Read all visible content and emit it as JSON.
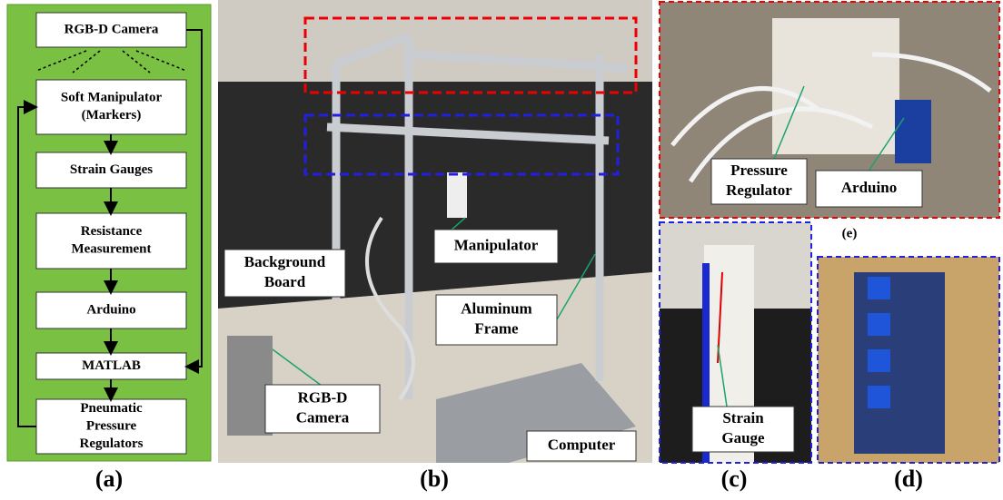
{
  "flowchart": {
    "nodes": [
      {
        "lines": [
          "RGB-D Camera"
        ]
      },
      {
        "lines": [
          "Soft Manipulator",
          "(Markers)"
        ]
      },
      {
        "lines": [
          "Strain Gauges"
        ]
      },
      {
        "lines": [
          "Resistance",
          "Measurement"
        ]
      },
      {
        "lines": [
          "Arduino"
        ]
      },
      {
        "lines": [
          "MATLAB"
        ]
      },
      {
        "lines": [
          "Pneumatic",
          "Pressure",
          "Regulators"
        ]
      }
    ]
  },
  "photo_labels": [
    {
      "lines": [
        "Manipulator"
      ]
    },
    {
      "lines": [
        "Background",
        "Board"
      ]
    },
    {
      "lines": [
        "Aluminum",
        "Frame"
      ]
    },
    {
      "lines": [
        "RGB-D",
        "Camera"
      ]
    },
    {
      "lines": [
        "Computer"
      ]
    },
    {
      "lines": [
        "Pressure",
        "Regulator"
      ]
    },
    {
      "lines": [
        "Arduino"
      ]
    },
    {
      "lines": [
        "Strain",
        "Gauge"
      ]
    }
  ],
  "captions": [
    "(a)",
    "(b)",
    "(c)",
    "(d)",
    "(e)"
  ]
}
